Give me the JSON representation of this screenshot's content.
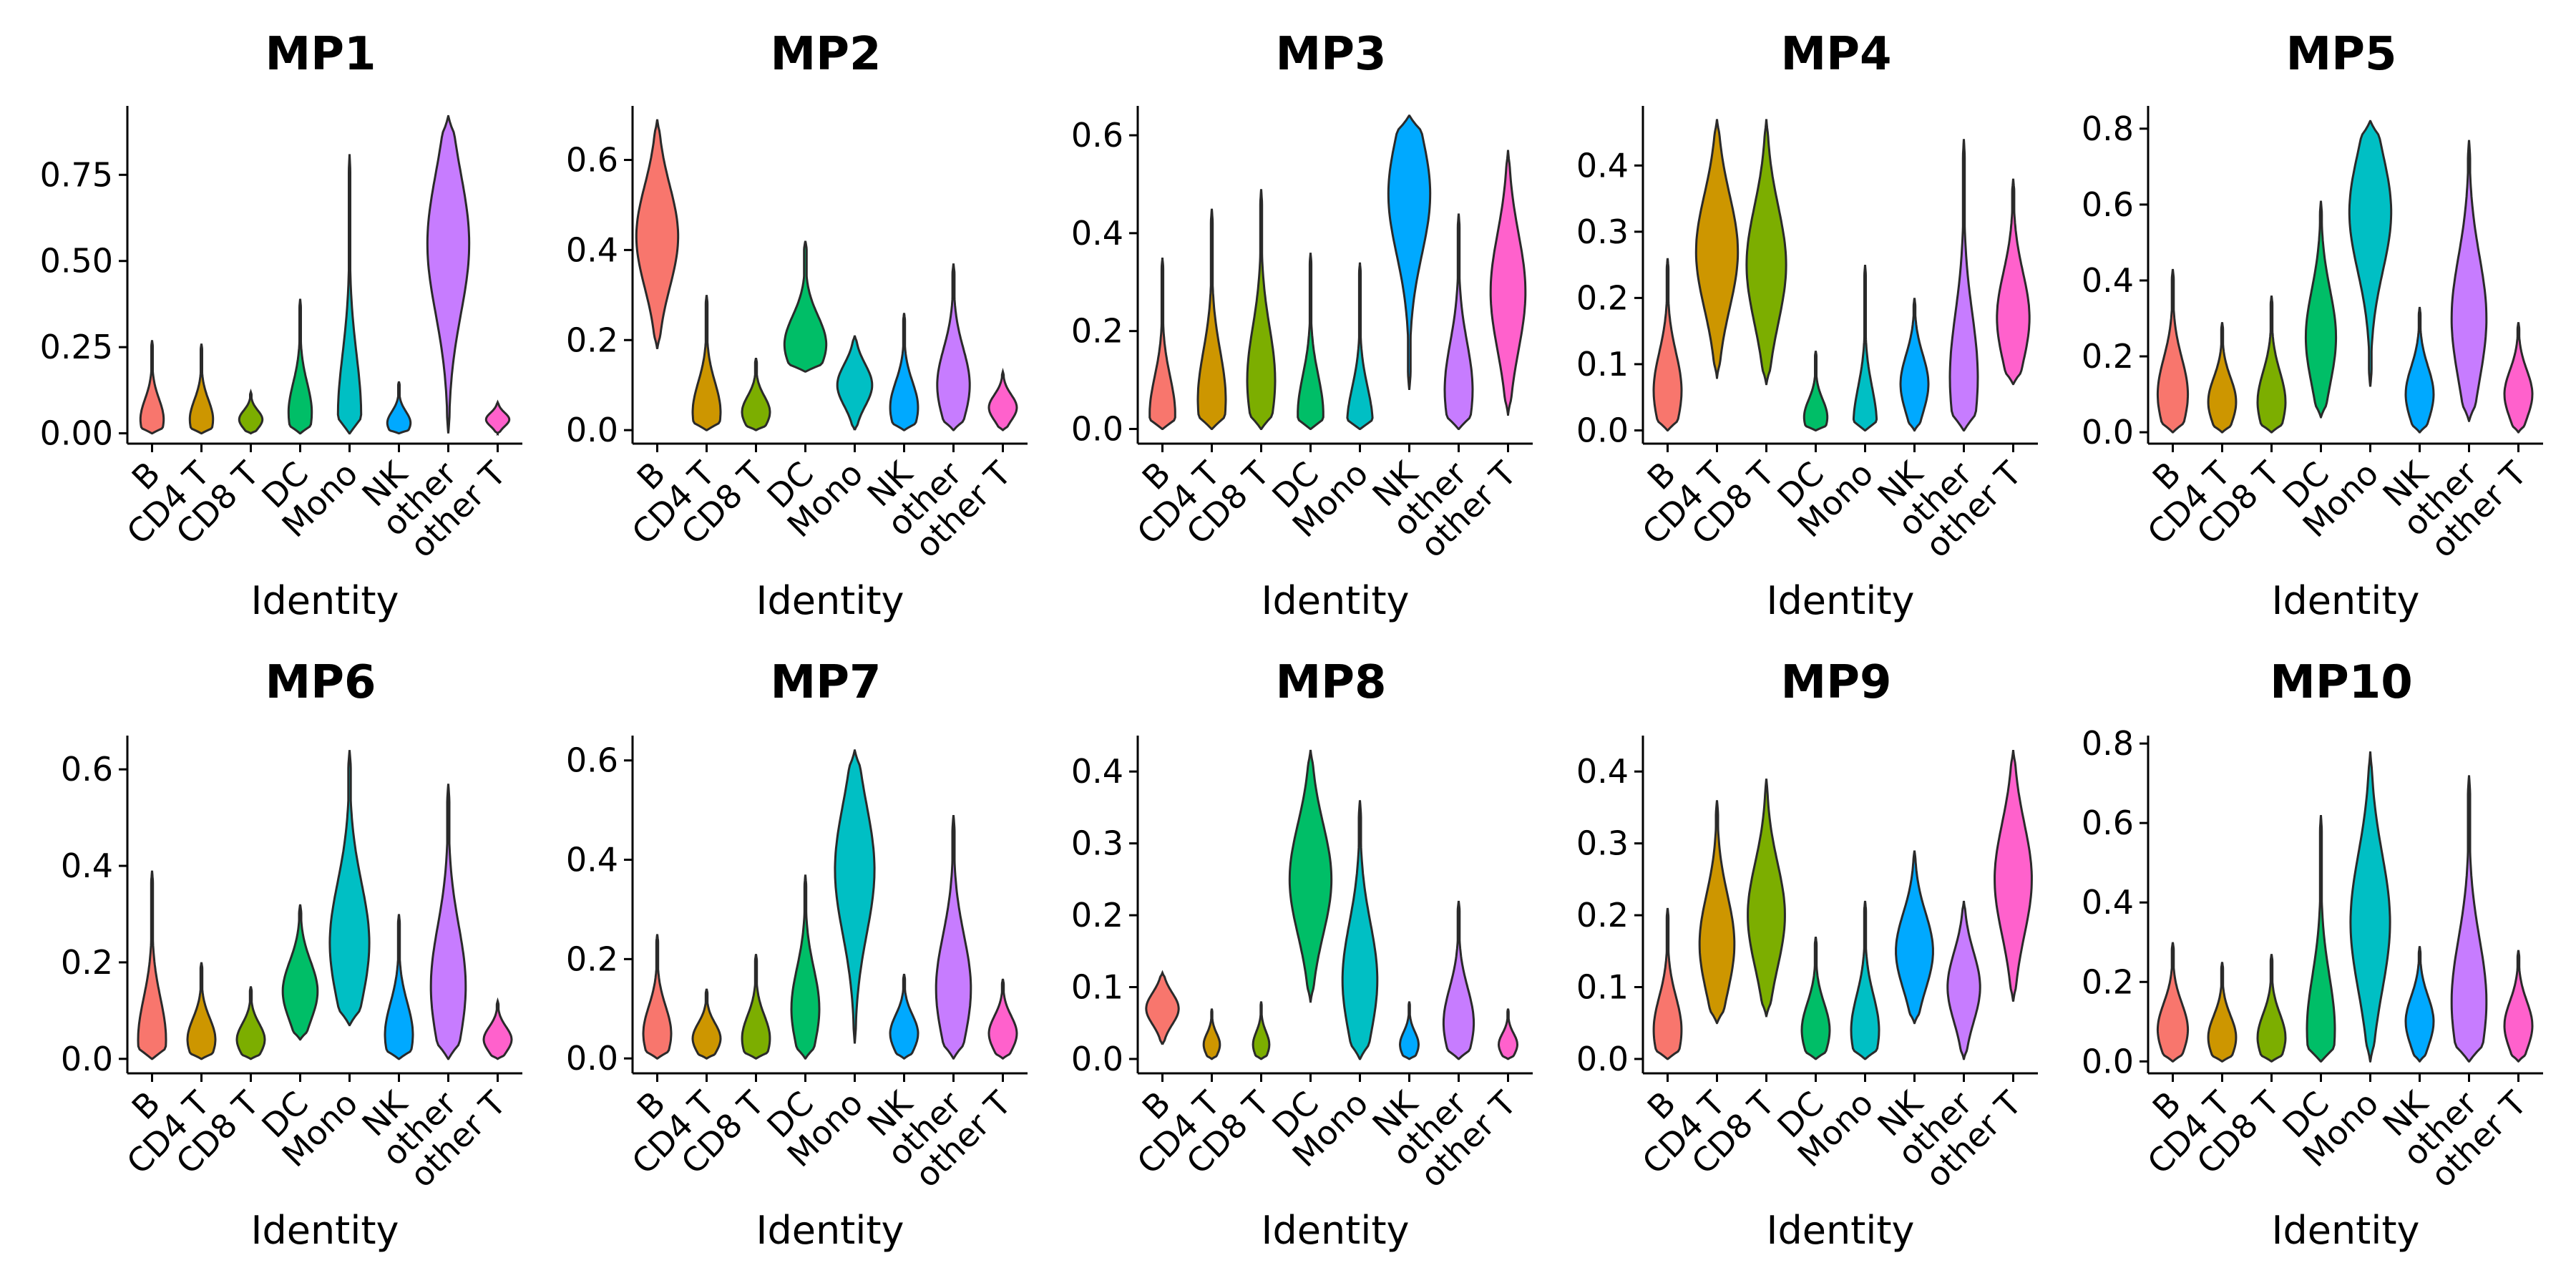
{
  "palette": {
    "B": "#F8766D",
    "CD4 T": "#CD9600",
    "CD8 T": "#7CAE00",
    "DC": "#00BE67",
    "Mono": "#00BFC4",
    "NK": "#00A9FF",
    "other": "#C77CFF",
    "other T": "#FF61CC"
  },
  "chart_data": [
    {
      "type": "violin",
      "title": "MP1",
      "xlabel": "Identity",
      "ylabel": "",
      "categories": [
        "B",
        "CD4 T",
        "CD8 T",
        "DC",
        "Mono",
        "NK",
        "other",
        "other T"
      ],
      "yticks": [
        0.0,
        0.25,
        0.5,
        0.75
      ],
      "ytick_labels": [
        "0.00",
        "0.25",
        "0.50",
        "0.75"
      ],
      "ylim": [
        -0.03,
        0.95
      ],
      "violins": [
        {
          "category": "B",
          "min": 0.0,
          "max": 0.27,
          "mode": 0.04,
          "width": 0.5
        },
        {
          "category": "CD4 T",
          "min": 0.0,
          "max": 0.26,
          "mode": 0.04,
          "width": 0.5
        },
        {
          "category": "CD8 T",
          "min": 0.0,
          "max": 0.12,
          "mode": 0.04,
          "width": 0.5
        },
        {
          "category": "DC",
          "min": 0.0,
          "max": 0.39,
          "mode": 0.06,
          "width": 0.5
        },
        {
          "category": "Mono",
          "min": 0.0,
          "max": 0.81,
          "mode": 0.05,
          "width": 0.5
        },
        {
          "category": "NK",
          "min": 0.0,
          "max": 0.15,
          "mode": 0.03,
          "width": 0.5
        },
        {
          "category": "other",
          "min": 0.0,
          "max": 0.92,
          "mode": 0.55,
          "width": 0.9
        },
        {
          "category": "other T",
          "min": 0.0,
          "max": 0.09,
          "mode": 0.04,
          "width": 0.5
        }
      ]
    },
    {
      "type": "violin",
      "title": "MP2",
      "xlabel": "Identity",
      "ylabel": "",
      "categories": [
        "B",
        "CD4 T",
        "CD8 T",
        "DC",
        "Mono",
        "NK",
        "other",
        "other T"
      ],
      "yticks": [
        0.0,
        0.2,
        0.4,
        0.6
      ],
      "ytick_labels": [
        "0.0",
        "0.2",
        "0.4",
        "0.6"
      ],
      "ylim": [
        -0.03,
        0.72
      ],
      "violins": [
        {
          "category": "B",
          "min": 0.18,
          "max": 0.69,
          "mode": 0.43,
          "width": 0.9
        },
        {
          "category": "CD4 T",
          "min": 0.0,
          "max": 0.3,
          "mode": 0.04,
          "width": 0.6
        },
        {
          "category": "CD8 T",
          "min": 0.0,
          "max": 0.16,
          "mode": 0.04,
          "width": 0.6
        },
        {
          "category": "DC",
          "min": 0.13,
          "max": 0.42,
          "mode": 0.19,
          "width": 0.9
        },
        {
          "category": "Mono",
          "min": 0.0,
          "max": 0.21,
          "mode": 0.1,
          "width": 0.75
        },
        {
          "category": "NK",
          "min": 0.0,
          "max": 0.26,
          "mode": 0.05,
          "width": 0.6
        },
        {
          "category": "other",
          "min": 0.0,
          "max": 0.37,
          "mode": 0.1,
          "width": 0.7
        },
        {
          "category": "other T",
          "min": 0.0,
          "max": 0.13,
          "mode": 0.05,
          "width": 0.6
        }
      ]
    },
    {
      "type": "violin",
      "title": "MP3",
      "xlabel": "Identity",
      "ylabel": "",
      "categories": [
        "B",
        "CD4 T",
        "CD8 T",
        "DC",
        "Mono",
        "NK",
        "other",
        "other T"
      ],
      "yticks": [
        0.0,
        0.2,
        0.4,
        0.6
      ],
      "ytick_labels": [
        "0.0",
        "0.2",
        "0.4",
        "0.6"
      ],
      "ylim": [
        -0.03,
        0.66
      ],
      "violins": [
        {
          "category": "B",
          "min": 0.0,
          "max": 0.35,
          "mode": 0.03,
          "width": 0.55
        },
        {
          "category": "CD4 T",
          "min": 0.0,
          "max": 0.45,
          "mode": 0.06,
          "width": 0.6
        },
        {
          "category": "CD8 T",
          "min": 0.0,
          "max": 0.49,
          "mode": 0.1,
          "width": 0.6
        },
        {
          "category": "DC",
          "min": 0.0,
          "max": 0.36,
          "mode": 0.03,
          "width": 0.55
        },
        {
          "category": "Mono",
          "min": 0.0,
          "max": 0.34,
          "mode": 0.01,
          "width": 0.55
        },
        {
          "category": "NK",
          "min": 0.08,
          "max": 0.64,
          "mode": 0.48,
          "width": 0.9
        },
        {
          "category": "other",
          "min": 0.0,
          "max": 0.44,
          "mode": 0.08,
          "width": 0.6
        },
        {
          "category": "other T",
          "min": 0.03,
          "max": 0.57,
          "mode": 0.28,
          "width": 0.75
        }
      ]
    },
    {
      "type": "violin",
      "title": "MP4",
      "xlabel": "Identity",
      "ylabel": "",
      "categories": [
        "B",
        "CD4 T",
        "CD8 T",
        "DC",
        "Mono",
        "NK",
        "other",
        "other T"
      ],
      "yticks": [
        0.0,
        0.1,
        0.2,
        0.3,
        0.4
      ],
      "ytick_labels": [
        "0.0",
        "0.1",
        "0.2",
        "0.3",
        "0.4"
      ],
      "ylim": [
        -0.02,
        0.49
      ],
      "violins": [
        {
          "category": "B",
          "min": 0.0,
          "max": 0.26,
          "mode": 0.06,
          "width": 0.6
        },
        {
          "category": "CD4 T",
          "min": 0.08,
          "max": 0.47,
          "mode": 0.27,
          "width": 0.9
        },
        {
          "category": "CD8 T",
          "min": 0.07,
          "max": 0.47,
          "mode": 0.25,
          "width": 0.85
        },
        {
          "category": "DC",
          "min": 0.0,
          "max": 0.12,
          "mode": 0.02,
          "width": 0.5
        },
        {
          "category": "Mono",
          "min": 0.0,
          "max": 0.25,
          "mode": 0.01,
          "width": 0.5
        },
        {
          "category": "NK",
          "min": 0.0,
          "max": 0.2,
          "mode": 0.07,
          "width": 0.6
        },
        {
          "category": "other",
          "min": 0.0,
          "max": 0.44,
          "mode": 0.08,
          "width": 0.6
        },
        {
          "category": "other T",
          "min": 0.07,
          "max": 0.38,
          "mode": 0.17,
          "width": 0.7
        }
      ]
    },
    {
      "type": "violin",
      "title": "MP5",
      "xlabel": "Identity",
      "ylabel": "",
      "categories": [
        "B",
        "CD4 T",
        "CD8 T",
        "DC",
        "Mono",
        "NK",
        "other",
        "other T"
      ],
      "yticks": [
        0.0,
        0.2,
        0.4,
        0.6,
        0.8
      ],
      "ytick_labels": [
        "0.0",
        "0.2",
        "0.4",
        "0.6",
        "0.8"
      ],
      "ylim": [
        -0.03,
        0.86
      ],
      "violins": [
        {
          "category": "B",
          "min": 0.0,
          "max": 0.43,
          "mode": 0.1,
          "width": 0.65
        },
        {
          "category": "CD4 T",
          "min": 0.0,
          "max": 0.29,
          "mode": 0.08,
          "width": 0.6
        },
        {
          "category": "CD8 T",
          "min": 0.0,
          "max": 0.36,
          "mode": 0.08,
          "width": 0.6
        },
        {
          "category": "DC",
          "min": 0.04,
          "max": 0.61,
          "mode": 0.25,
          "width": 0.65
        },
        {
          "category": "Mono",
          "min": 0.12,
          "max": 0.82,
          "mode": 0.58,
          "width": 0.9
        },
        {
          "category": "NK",
          "min": 0.0,
          "max": 0.33,
          "mode": 0.1,
          "width": 0.6
        },
        {
          "category": "other",
          "min": 0.03,
          "max": 0.77,
          "mode": 0.3,
          "width": 0.75
        },
        {
          "category": "other T",
          "min": 0.0,
          "max": 0.29,
          "mode": 0.1,
          "width": 0.6
        }
      ]
    },
    {
      "type": "violin",
      "title": "MP6",
      "xlabel": "Identity",
      "ylabel": "",
      "categories": [
        "B",
        "CD4 T",
        "CD8 T",
        "DC",
        "Mono",
        "NK",
        "other",
        "other T"
      ],
      "yticks": [
        0.0,
        0.2,
        0.4,
        0.6
      ],
      "ytick_labels": [
        "0.0",
        "0.2",
        "0.4",
        "0.6"
      ],
      "ylim": [
        -0.03,
        0.67
      ],
      "violins": [
        {
          "category": "B",
          "min": 0.0,
          "max": 0.39,
          "mode": 0.04,
          "width": 0.6
        },
        {
          "category": "CD4 T",
          "min": 0.0,
          "max": 0.2,
          "mode": 0.04,
          "width": 0.6
        },
        {
          "category": "CD8 T",
          "min": 0.0,
          "max": 0.15,
          "mode": 0.04,
          "width": 0.6
        },
        {
          "category": "DC",
          "min": 0.04,
          "max": 0.32,
          "mode": 0.14,
          "width": 0.75
        },
        {
          "category": "Mono",
          "min": 0.07,
          "max": 0.64,
          "mode": 0.24,
          "width": 0.85
        },
        {
          "category": "NK",
          "min": 0.0,
          "max": 0.3,
          "mode": 0.05,
          "width": 0.6
        },
        {
          "category": "other",
          "min": 0.0,
          "max": 0.57,
          "mode": 0.15,
          "width": 0.75
        },
        {
          "category": "other T",
          "min": 0.0,
          "max": 0.12,
          "mode": 0.04,
          "width": 0.6
        }
      ]
    },
    {
      "type": "violin",
      "title": "MP7",
      "xlabel": "Identity",
      "ylabel": "",
      "categories": [
        "B",
        "CD4 T",
        "CD8 T",
        "DC",
        "Mono",
        "NK",
        "other",
        "other T"
      ],
      "yticks": [
        0.0,
        0.2,
        0.4,
        0.6
      ],
      "ytick_labels": [
        "0.0",
        "0.2",
        "0.4",
        "0.6"
      ],
      "ylim": [
        -0.03,
        0.65
      ],
      "violins": [
        {
          "category": "B",
          "min": 0.0,
          "max": 0.25,
          "mode": 0.05,
          "width": 0.6
        },
        {
          "category": "CD4 T",
          "min": 0.0,
          "max": 0.14,
          "mode": 0.04,
          "width": 0.6
        },
        {
          "category": "CD8 T",
          "min": 0.0,
          "max": 0.21,
          "mode": 0.04,
          "width": 0.6
        },
        {
          "category": "DC",
          "min": 0.0,
          "max": 0.37,
          "mode": 0.1,
          "width": 0.6
        },
        {
          "category": "Mono",
          "min": 0.03,
          "max": 0.62,
          "mode": 0.38,
          "width": 0.85
        },
        {
          "category": "NK",
          "min": 0.0,
          "max": 0.17,
          "mode": 0.05,
          "width": 0.6
        },
        {
          "category": "other",
          "min": 0.0,
          "max": 0.49,
          "mode": 0.14,
          "width": 0.75
        },
        {
          "category": "other T",
          "min": 0.0,
          "max": 0.16,
          "mode": 0.05,
          "width": 0.6
        }
      ]
    },
    {
      "type": "violin",
      "title": "MP8",
      "xlabel": "Identity",
      "ylabel": "",
      "categories": [
        "B",
        "CD4 T",
        "CD8 T",
        "DC",
        "Mono",
        "NK",
        "other",
        "other T"
      ],
      "yticks": [
        0.0,
        0.1,
        0.2,
        0.3,
        0.4
      ],
      "ytick_labels": [
        "0.0",
        "0.1",
        "0.2",
        "0.3",
        "0.4"
      ],
      "ylim": [
        -0.02,
        0.45
      ],
      "violins": [
        {
          "category": "B",
          "min": 0.02,
          "max": 0.12,
          "mode": 0.07,
          "width": 0.7
        },
        {
          "category": "CD4 T",
          "min": 0.0,
          "max": 0.07,
          "mode": 0.02,
          "width": 0.35
        },
        {
          "category": "CD8 T",
          "min": 0.0,
          "max": 0.08,
          "mode": 0.02,
          "width": 0.35
        },
        {
          "category": "DC",
          "min": 0.08,
          "max": 0.43,
          "mode": 0.25,
          "width": 0.9
        },
        {
          "category": "Mono",
          "min": 0.0,
          "max": 0.36,
          "mode": 0.11,
          "width": 0.75
        },
        {
          "category": "NK",
          "min": 0.0,
          "max": 0.08,
          "mode": 0.02,
          "width": 0.4
        },
        {
          "category": "other",
          "min": 0.0,
          "max": 0.22,
          "mode": 0.05,
          "width": 0.65
        },
        {
          "category": "other T",
          "min": 0.0,
          "max": 0.07,
          "mode": 0.02,
          "width": 0.4
        }
      ]
    },
    {
      "type": "violin",
      "title": "MP9",
      "xlabel": "Identity",
      "ylabel": "",
      "categories": [
        "B",
        "CD4 T",
        "CD8 T",
        "DC",
        "Mono",
        "NK",
        "other",
        "other T"
      ],
      "yticks": [
        0.0,
        0.1,
        0.2,
        0.3,
        0.4
      ],
      "ytick_labels": [
        "0.0",
        "0.1",
        "0.2",
        "0.3",
        "0.4"
      ],
      "ylim": [
        -0.02,
        0.45
      ],
      "violins": [
        {
          "category": "B",
          "min": 0.0,
          "max": 0.21,
          "mode": 0.04,
          "width": 0.6
        },
        {
          "category": "CD4 T",
          "min": 0.05,
          "max": 0.36,
          "mode": 0.16,
          "width": 0.75
        },
        {
          "category": "CD8 T",
          "min": 0.06,
          "max": 0.39,
          "mode": 0.2,
          "width": 0.8
        },
        {
          "category": "DC",
          "min": 0.0,
          "max": 0.17,
          "mode": 0.04,
          "width": 0.6
        },
        {
          "category": "Mono",
          "min": 0.0,
          "max": 0.22,
          "mode": 0.04,
          "width": 0.6
        },
        {
          "category": "NK",
          "min": 0.05,
          "max": 0.29,
          "mode": 0.15,
          "width": 0.8
        },
        {
          "category": "other",
          "min": 0.0,
          "max": 0.22,
          "mode": 0.1,
          "width": 0.7
        },
        {
          "category": "other T",
          "min": 0.08,
          "max": 0.43,
          "mode": 0.25,
          "width": 0.8
        }
      ]
    },
    {
      "type": "violin",
      "title": "MP10",
      "xlabel": "Identity",
      "ylabel": "",
      "categories": [
        "B",
        "CD4 T",
        "CD8 T",
        "DC",
        "Mono",
        "NK",
        "other",
        "other T"
      ],
      "yticks": [
        0.0,
        0.2,
        0.4,
        0.6,
        0.8
      ],
      "ytick_labels": [
        "0.0",
        "0.2",
        "0.4",
        "0.6",
        "0.8"
      ],
      "ylim": [
        -0.03,
        0.82
      ],
      "violins": [
        {
          "category": "B",
          "min": 0.0,
          "max": 0.3,
          "mode": 0.08,
          "width": 0.65
        },
        {
          "category": "CD4 T",
          "min": 0.0,
          "max": 0.25,
          "mode": 0.06,
          "width": 0.6
        },
        {
          "category": "CD8 T",
          "min": 0.0,
          "max": 0.27,
          "mode": 0.06,
          "width": 0.6
        },
        {
          "category": "DC",
          "min": 0.0,
          "max": 0.62,
          "mode": 0.08,
          "width": 0.6
        },
        {
          "category": "Mono",
          "min": 0.0,
          "max": 0.78,
          "mode": 0.35,
          "width": 0.85
        },
        {
          "category": "NK",
          "min": 0.0,
          "max": 0.29,
          "mode": 0.1,
          "width": 0.6
        },
        {
          "category": "other",
          "min": 0.0,
          "max": 0.72,
          "mode": 0.15,
          "width": 0.75
        },
        {
          "category": "other T",
          "min": 0.0,
          "max": 0.28,
          "mode": 0.09,
          "width": 0.6
        }
      ]
    }
  ]
}
